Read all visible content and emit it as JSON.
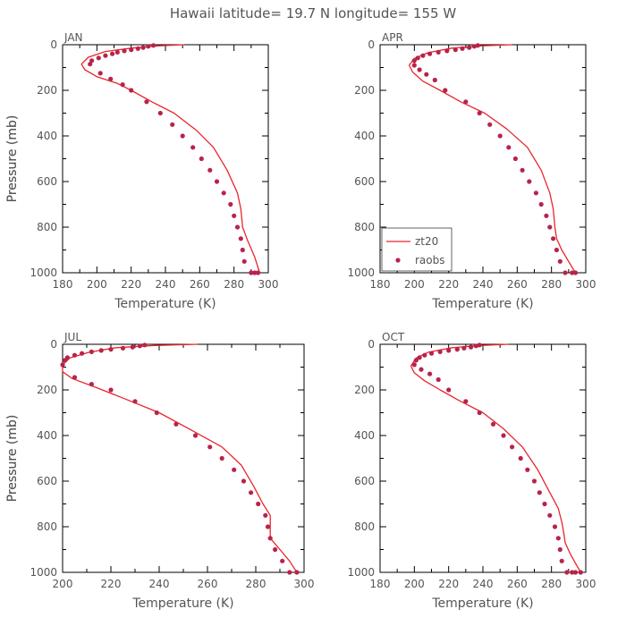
{
  "title": "Hawaii  latitude= 19.7 N longitude= 155 W",
  "colors": {
    "model": "#e8252b",
    "obs": "#b8234b",
    "frame": "#000000",
    "text": "#555555"
  },
  "legend": {
    "model_label": "zt20",
    "obs_label": "raobs",
    "placement": "lower-left of APR panel"
  },
  "chart_data": [
    {
      "type": "line",
      "panel": "JAN",
      "xlabel": "Temperature (K)",
      "ylabel": "Pressure (mb)",
      "xlim": [
        180,
        300
      ],
      "ylim": [
        1000,
        0
      ],
      "xticks": [
        180,
        200,
        220,
        240,
        260,
        280,
        300
      ],
      "yticks": [
        0,
        200,
        400,
        600,
        800,
        1000
      ],
      "series": [
        {
          "name": "zt20",
          "kind": "line",
          "x": [
            251,
            235,
            220,
            205,
            195,
            191,
            193,
            200,
            212,
            220,
            232,
            245,
            258,
            268,
            276,
            282,
            284,
            285,
            288,
            292,
            295
          ],
          "y": [
            0,
            5,
            15,
            30,
            55,
            85,
            110,
            140,
            170,
            200,
            250,
            300,
            375,
            450,
            550,
            650,
            720,
            800,
            860,
            930,
            1000
          ]
        },
        {
          "name": "raobs",
          "kind": "scatter",
          "x": [
            233,
            230,
            227,
            224,
            220,
            216,
            212,
            209,
            205,
            201,
            197,
            196,
            202,
            208,
            215,
            220,
            229,
            237,
            244,
            250,
            256,
            261,
            266,
            270,
            274,
            278,
            280,
            282,
            284,
            285,
            286,
            290,
            292,
            294
          ],
          "y": [
            3,
            7,
            12,
            17,
            22,
            27,
            33,
            40,
            48,
            58,
            70,
            85,
            125,
            150,
            175,
            200,
            250,
            300,
            350,
            400,
            450,
            500,
            550,
            600,
            650,
            700,
            750,
            800,
            850,
            900,
            950,
            1000,
            1000,
            1000
          ]
        }
      ]
    },
    {
      "type": "line",
      "panel": "APR",
      "xlabel": "Temperature (K)",
      "ylabel": "Pressure (mb)",
      "xlim": [
        180,
        300
      ],
      "ylim": [
        1000,
        0
      ],
      "xticks": [
        180,
        200,
        220,
        240,
        260,
        280,
        300
      ],
      "yticks": [
        0,
        200,
        400,
        600,
        800,
        1000
      ],
      "series": [
        {
          "name": "zt20",
          "kind": "line",
          "x": [
            257,
            238,
            222,
            208,
            200,
            197,
            199,
            205,
            215,
            227,
            241,
            254,
            266,
            274,
            279,
            281,
            282,
            283,
            286,
            290,
            294
          ],
          "y": [
            0,
            5,
            15,
            35,
            60,
            90,
            120,
            160,
            200,
            250,
            300,
            370,
            450,
            550,
            650,
            720,
            800,
            850,
            900,
            950,
            1000
          ]
        },
        {
          "name": "raobs",
          "kind": "scatter",
          "x": [
            237,
            235,
            232,
            228,
            224,
            219,
            214,
            209,
            205,
            202,
            200,
            200,
            203,
            207,
            212,
            218,
            230,
            238,
            244,
            250,
            255,
            259,
            263,
            267,
            271,
            274,
            277,
            279,
            281,
            283,
            285,
            288,
            292,
            294
          ],
          "y": [
            3,
            7,
            12,
            17,
            22,
            27,
            33,
            40,
            48,
            58,
            70,
            90,
            110,
            130,
            155,
            200,
            250,
            300,
            350,
            400,
            450,
            500,
            550,
            600,
            650,
            700,
            750,
            800,
            850,
            900,
            950,
            1000,
            1000,
            1000
          ]
        }
      ]
    },
    {
      "type": "line",
      "panel": "JUL",
      "xlabel": "Temperature (K)",
      "ylabel": "Pressure (mb)",
      "xlim": [
        200,
        300
      ],
      "ylim": [
        1000,
        0
      ],
      "xticks": [
        200,
        220,
        240,
        260,
        280,
        300
      ],
      "yticks": [
        0,
        200,
        400,
        600,
        800,
        1000
      ],
      "series": [
        {
          "name": "zt20",
          "kind": "line",
          "x": [
            256,
            238,
            222,
            211,
            203,
            200,
            200,
            204,
            214,
            226,
            240,
            254,
            266,
            274,
            279,
            283,
            286,
            286,
            286,
            290,
            294,
            297
          ],
          "y": [
            0,
            5,
            15,
            35,
            60,
            90,
            120,
            150,
            190,
            240,
            300,
            380,
            450,
            530,
            620,
            700,
            750,
            800,
            850,
            900,
            950,
            1000
          ]
        },
        {
          "name": "raobs",
          "kind": "scatter",
          "x": [
            234,
            232,
            229,
            225,
            220,
            216,
            212,
            208,
            205,
            202,
            201,
            200,
            205,
            212,
            220,
            230,
            239,
            247,
            255,
            261,
            266,
            271,
            275,
            278,
            281,
            284,
            285,
            286,
            288,
            291,
            294,
            297
          ],
          "y": [
            3,
            7,
            12,
            17,
            22,
            27,
            33,
            40,
            48,
            58,
            70,
            90,
            145,
            175,
            200,
            250,
            300,
            350,
            400,
            450,
            500,
            550,
            600,
            650,
            700,
            750,
            800,
            850,
            900,
            950,
            1000,
            1000
          ]
        }
      ]
    },
    {
      "type": "line",
      "panel": "OCT",
      "xlabel": "Temperature (K)",
      "ylabel": "Pressure (mb)",
      "xlim": [
        180,
        300
      ],
      "ylim": [
        1000,
        0
      ],
      "xticks": [
        180,
        200,
        220,
        240,
        260,
        280,
        300
      ],
      "yticks": [
        0,
        200,
        400,
        600,
        800,
        1000
      ],
      "series": [
        {
          "name": "zt20",
          "kind": "line",
          "x": [
            255,
            238,
            222,
            208,
            201,
            198,
            200,
            206,
            215,
            227,
            240,
            252,
            263,
            272,
            279,
            284,
            286,
            287,
            288,
            291,
            294,
            297
          ],
          "y": [
            0,
            5,
            15,
            35,
            60,
            95,
            125,
            160,
            200,
            250,
            300,
            370,
            450,
            550,
            650,
            720,
            780,
            820,
            870,
            920,
            960,
            1000
          ]
        },
        {
          "name": "raobs",
          "kind": "scatter",
          "x": [
            238,
            236,
            233,
            229,
            225,
            220,
            215,
            210,
            206,
            203,
            201,
            200,
            204,
            209,
            214,
            220,
            230,
            238,
            246,
            252,
            257,
            262,
            266,
            270,
            273,
            276,
            279,
            282,
            284,
            285,
            286,
            289,
            292,
            294,
            297
          ],
          "y": [
            3,
            7,
            12,
            17,
            22,
            27,
            33,
            40,
            48,
            58,
            70,
            90,
            110,
            130,
            155,
            200,
            250,
            300,
            350,
            400,
            450,
            500,
            550,
            600,
            650,
            700,
            750,
            800,
            850,
            900,
            950,
            1000,
            1000,
            1000,
            1000
          ]
        }
      ]
    }
  ]
}
